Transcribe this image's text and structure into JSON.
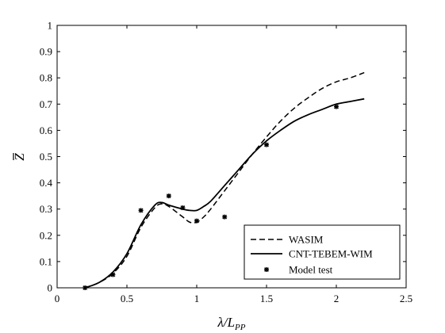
{
  "chart_data": {
    "type": "line",
    "title": "",
    "xlabel": "λ/L_PP",
    "ylabel": "Z̄",
    "xlim": [
      0,
      2.5
    ],
    "ylim": [
      0,
      1
    ],
    "xticks": [
      0,
      0.5,
      1,
      1.5,
      2,
      2.5
    ],
    "xtick_labels": [
      "0",
      "0.5",
      "1",
      "1.5",
      "2",
      "2.5"
    ],
    "yticks": [
      0,
      0.1,
      0.2,
      0.3,
      0.4,
      0.5,
      0.6,
      0.7,
      0.8,
      0.9,
      1
    ],
    "ytick_labels": [
      "0",
      "0.1",
      "0.2",
      "0.3",
      "0.4",
      "0.5",
      "0.6",
      "0.7",
      "0.8",
      "0.9",
      "1"
    ],
    "grid": false,
    "legend_position": "bottom-right",
    "series": [
      {
        "name": "WASIM",
        "style": "dashed",
        "color": "#000000",
        "x": [
          0.2,
          0.3,
          0.4,
          0.5,
          0.6,
          0.7,
          0.75,
          0.8,
          0.9,
          0.95,
          1.0,
          1.05,
          1.1,
          1.2,
          1.3,
          1.4,
          1.5,
          1.6,
          1.7,
          1.8,
          1.9,
          2.0,
          2.1,
          2.2
        ],
        "y": [
          0.0,
          0.02,
          0.055,
          0.12,
          0.23,
          0.305,
          0.32,
          0.31,
          0.27,
          0.25,
          0.25,
          0.27,
          0.3,
          0.37,
          0.44,
          0.51,
          0.575,
          0.635,
          0.685,
          0.725,
          0.76,
          0.785,
          0.8,
          0.82
        ]
      },
      {
        "name": "CNT-TEBEM-WIM",
        "style": "solid",
        "color": "#000000",
        "x": [
          0.2,
          0.3,
          0.4,
          0.5,
          0.6,
          0.7,
          0.75,
          0.8,
          0.9,
          0.95,
          1.0,
          1.05,
          1.1,
          1.2,
          1.3,
          1.4,
          1.5,
          1.6,
          1.7,
          1.8,
          1.9,
          2.0,
          2.1,
          2.2
        ],
        "y": [
          0.0,
          0.02,
          0.06,
          0.13,
          0.24,
          0.315,
          0.325,
          0.315,
          0.3,
          0.295,
          0.295,
          0.31,
          0.33,
          0.39,
          0.45,
          0.51,
          0.56,
          0.6,
          0.635,
          0.66,
          0.68,
          0.7,
          0.71,
          0.72
        ]
      },
      {
        "name": "Model test",
        "style": "markers",
        "marker": "star",
        "color": "#000000",
        "x": [
          0.2,
          0.4,
          0.6,
          0.8,
          0.9,
          1.0,
          1.2,
          1.5,
          2.0
        ],
        "y": [
          0.0,
          0.05,
          0.295,
          0.35,
          0.305,
          0.255,
          0.27,
          0.545,
          0.69
        ]
      }
    ]
  }
}
